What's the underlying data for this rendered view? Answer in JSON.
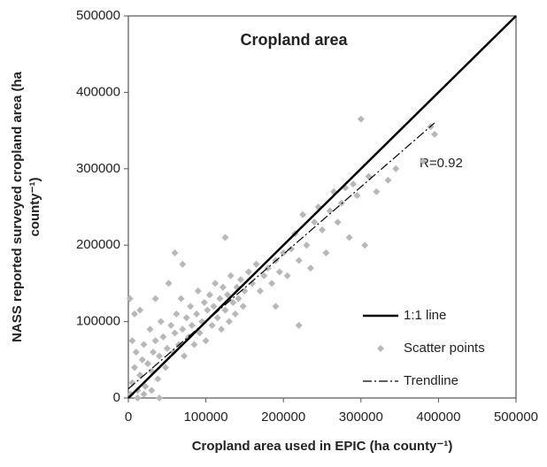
{
  "chart_data": {
    "type": "scatter",
    "title": "Cropland area",
    "x_label": "Cropland area used in EPIC (ha county⁻¹)",
    "y_label": [
      "NASS reported surveyed cropland area (ha",
      "county⁻¹)"
    ],
    "annotation": "R=0.92",
    "xlim": [
      0,
      500000
    ],
    "ylim": [
      0,
      500000
    ],
    "xticks": [
      0,
      100000,
      200000,
      300000,
      400000,
      500000
    ],
    "yticks": [
      0,
      100000,
      200000,
      300000,
      400000,
      500000
    ],
    "grid": false,
    "legend": "lower right",
    "series": [
      {
        "name": "1:1 line",
        "kind": "line",
        "color": "#000000",
        "x": [
          0,
          500000
        ],
        "values": [
          0,
          500000
        ]
      },
      {
        "name": "Scatter points",
        "kind": "points",
        "color": "#b8b8b8",
        "x": [
          2000,
          3000,
          5000,
          8000,
          10000,
          12000,
          15000,
          18000,
          20000,
          22000,
          25000,
          28000,
          30000,
          32000,
          35000,
          38000,
          40000,
          42000,
          45000,
          48000,
          50000,
          52000,
          55000,
          58000,
          60000,
          62000,
          65000,
          68000,
          70000,
          72000,
          75000,
          78000,
          80000,
          82000,
          85000,
          88000,
          90000,
          92000,
          95000,
          98000,
          100000,
          102000,
          105000,
          108000,
          110000,
          112000,
          115000,
          118000,
          120000,
          122000,
          125000,
          128000,
          130000,
          132000,
          135000,
          138000,
          140000,
          142000,
          145000,
          148000,
          150000,
          155000,
          160000,
          165000,
          170000,
          175000,
          180000,
          185000,
          190000,
          195000,
          200000,
          205000,
          210000,
          215000,
          220000,
          225000,
          230000,
          235000,
          240000,
          245000,
          250000,
          255000,
          260000,
          265000,
          270000,
          275000,
          280000,
          285000,
          290000,
          295000,
          300000,
          305000,
          310000,
          320000,
          335000,
          345000,
          380000,
          395000,
          390000,
          60000,
          70000,
          125000,
          35000,
          8000,
          190000,
          220000,
          15000,
          5000,
          12000,
          20000,
          30000,
          40000
        ],
        "values": [
          130000,
          5000,
          20000,
          40000,
          60000,
          10000,
          30000,
          50000,
          70000,
          15000,
          45000,
          90000,
          35000,
          60000,
          75000,
          25000,
          55000,
          100000,
          80000,
          40000,
          65000,
          150000,
          95000,
          60000,
          85000,
          110000,
          70000,
          130000,
          90000,
          55000,
          105000,
          80000,
          120000,
          95000,
          70000,
          110000,
          140000,
          85000,
          100000,
          125000,
          75000,
          115000,
          135000,
          95000,
          120000,
          150000,
          105000,
          130000,
          90000,
          145000,
          115000,
          135000,
          100000,
          160000,
          125000,
          110000,
          145000,
          130000,
          155000,
          120000,
          140000,
          165000,
          150000,
          175000,
          140000,
          160000,
          170000,
          150000,
          180000,
          165000,
          190000,
          160000,
          195000,
          215000,
          180000,
          240000,
          200000,
          170000,
          230000,
          250000,
          220000,
          190000,
          245000,
          270000,
          230000,
          255000,
          275000,
          210000,
          280000,
          265000,
          365000,
          200000,
          290000,
          270000,
          285000,
          300000,
          310000,
          345000,
          355000,
          190000,
          175000,
          210000,
          130000,
          110000,
          120000,
          95000,
          115000,
          75000,
          0,
          5000,
          10000,
          0
        ]
      },
      {
        "name": "Trendline",
        "kind": "dashdot",
        "color": "#000000",
        "x": [
          0,
          395000
        ],
        "values": [
          12000,
          360000
        ]
      }
    ]
  }
}
